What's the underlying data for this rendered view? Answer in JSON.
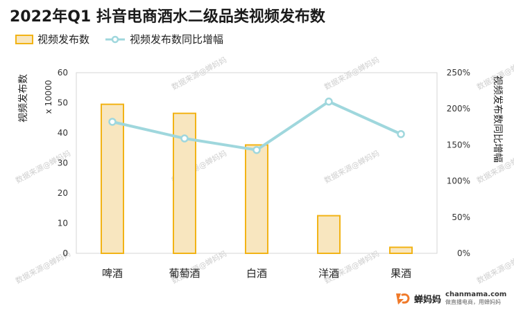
{
  "title": "2022年Q1 抖音电商酒水二级品类视频发布数",
  "legend": {
    "bar_label": "视频发布数",
    "line_label": "视频发布数同比增幅"
  },
  "multiplier_label": "x 10000",
  "watermark_text": "数据来源@蝉妈妈",
  "brand": {
    "name": "蝉妈妈",
    "domain": "chanmama.com",
    "slogan": "做直播电商，用蝉妈妈"
  },
  "colors": {
    "bar_fill": "#f8e6bf",
    "bar_stroke": "#f2b315",
    "line": "#9fd7dd",
    "brand_orange": "#f07a2a"
  },
  "chart_data": {
    "type": "bar",
    "categories": [
      "啤酒",
      "葡萄酒",
      "白酒",
      "洋酒",
      "果酒"
    ],
    "series": [
      {
        "name": "视频发布数",
        "type": "bar",
        "axis": "left",
        "values": [
          49.5,
          46.5,
          36,
          12.5,
          2
        ]
      },
      {
        "name": "视频发布数同比增幅",
        "type": "line",
        "axis": "right",
        "values": [
          182,
          159,
          143,
          210,
          165
        ]
      }
    ],
    "ylabel": "视频发布数",
    "y2label": "视频发布数同比增幅",
    "ylim": [
      0,
      60
    ],
    "y2lim": [
      0,
      250
    ],
    "yticks": [
      0,
      10,
      20,
      30,
      40,
      50,
      60
    ],
    "y2ticks": [
      "0%",
      "50%",
      "100%",
      "150%",
      "200%",
      "250%"
    ],
    "grid": false,
    "legend_position": "top-left"
  }
}
